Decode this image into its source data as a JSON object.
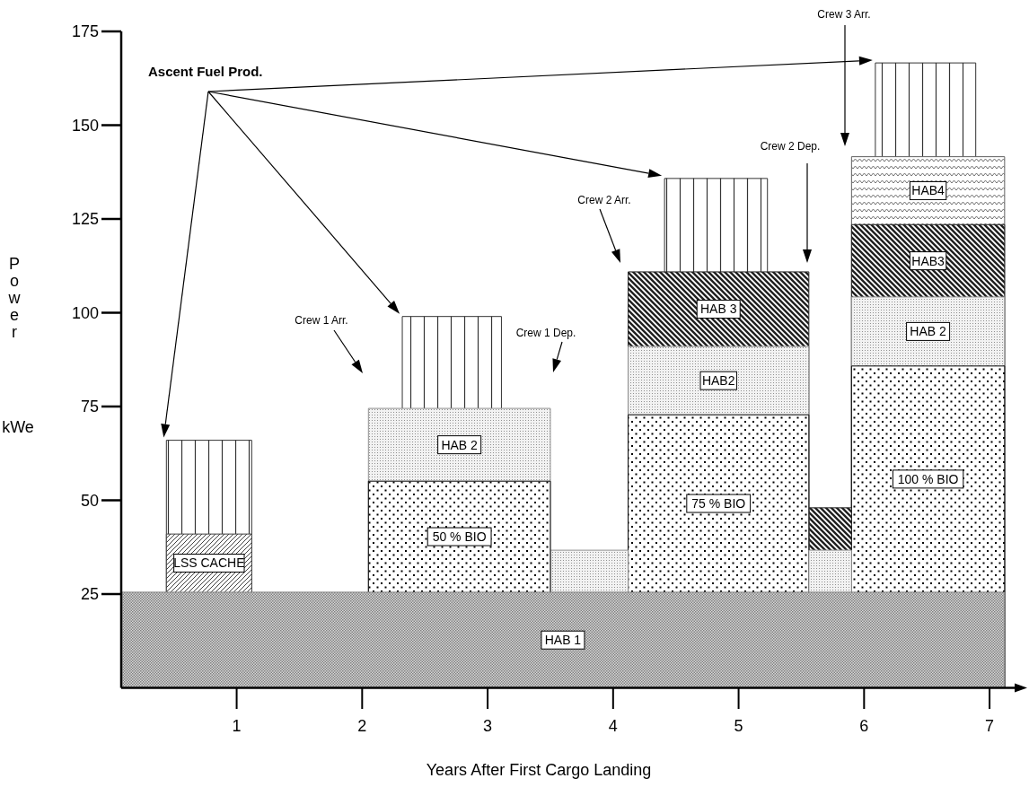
{
  "chart_data": {
    "type": "area",
    "xlabel": "Years After First Cargo Landing",
    "ylabel": "Power",
    "xlim": [
      0.08,
      7.3
    ],
    "ylim": [
      0,
      175
    ],
    "xticks": [
      1,
      2,
      3,
      4,
      5,
      6,
      7
    ],
    "yticks": [
      25,
      50,
      75,
      100,
      125,
      150,
      175
    ],
    "series": [
      {
        "name": "HAB 1",
        "color": "#808080",
        "x": [
          0.08,
          7.12
        ],
        "values": [
          25.5,
          25.5
        ]
      },
      {
        "name": "LSS CACHE",
        "color": "#404040",
        "x": [
          0.44,
          1.12
        ],
        "values": [
          41,
          41
        ]
      },
      {
        "name": "50 % BIO",
        "color": "#000000",
        "x": [
          2.05,
          3.5
        ],
        "values": [
          55.1,
          55.1
        ]
      },
      {
        "name": "HAB 2",
        "color": "#909090",
        "x": [
          2.05,
          3.5
        ],
        "values": [
          74.5,
          74.5
        ]
      },
      {
        "color": "#909090",
        "x": [
          3.5,
          4.12
        ],
        "values": [
          36.7,
          36.7
        ]
      },
      {
        "color": "#909090",
        "x": [
          5.56,
          5.9
        ],
        "values": [
          36.7,
          36.7
        ]
      },
      {
        "name": "75 % BIO",
        "color": "#000000",
        "x": [
          4.12,
          5.56
        ],
        "values": [
          72.8,
          72.8
        ]
      },
      {
        "name": "HAB2",
        "color": "#909090",
        "x": [
          4.12,
          5.56
        ],
        "values": [
          91,
          91
        ]
      },
      {
        "name": "HAB 3",
        "color": "#202020",
        "x": [
          4.12,
          5.56
        ],
        "values": [
          110.9,
          110.9
        ]
      },
      {
        "color": "#202020",
        "x": [
          5.56,
          5.9
        ],
        "values": [
          48,
          48
        ]
      },
      {
        "name": "100 % BIO",
        "color": "#000000",
        "x": [
          5.9,
          7.12
        ],
        "values": [
          85.8,
          85.8
        ]
      },
      {
        "name": "HAB 2",
        "color": "#909090",
        "x": [
          5.9,
          7.12
        ],
        "values": [
          104.2,
          104.2
        ]
      },
      {
        "name": "HAB3",
        "color": "#202020",
        "x": [
          5.9,
          7.12
        ],
        "values": [
          123.5,
          123.5
        ]
      },
      {
        "name": "HAB4",
        "color": "#606060",
        "x": [
          5.9,
          7.12
        ],
        "values": [
          141.6,
          141.6
        ]
      },
      {
        "color": "#333333",
        "x": [
          0.44,
          1.12
        ],
        "values": [
          66,
          66
        ]
      },
      {
        "color": "#333333",
        "x": [
          2.32,
          3.11
        ],
        "values": [
          99,
          99
        ]
      },
      {
        "color": "#333333",
        "x": [
          4.41,
          5.23
        ],
        "values": [
          135.8,
          135.8
        ]
      },
      {
        "color": "#333333",
        "x": [
          6.09,
          6.89
        ],
        "values": [
          166.6,
          166.6
        ]
      }
    ],
    "annotations": [
      "Ascent Fuel Prod.",
      "Crew 1 Arr.",
      "Crew 1 Dep.",
      "Crew 2 Arr.",
      "Crew 2 Dep.",
      "Crew 3 Arr.",
      "kWe"
    ]
  }
}
